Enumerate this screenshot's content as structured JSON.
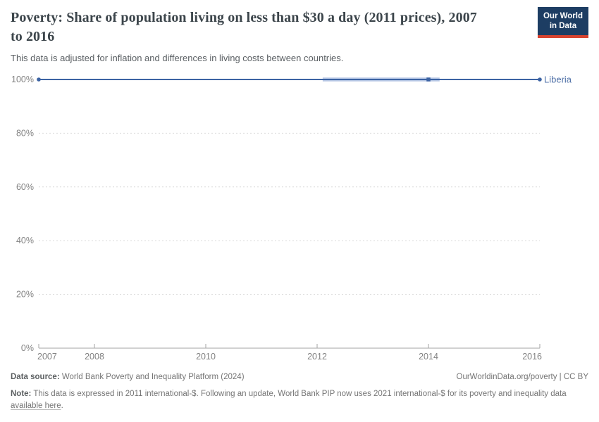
{
  "header": {
    "logo": {
      "line1": "Our World",
      "line2": "in Data",
      "bg_color": "#1d3d63",
      "stripe_color": "#d8432f"
    }
  },
  "chart_data": {
    "type": "line",
    "title": "Poverty: Share of population living on less than $30 a day (2011 prices), 2007 to 2016",
    "subtitle": "This data is adjusted for inflation and differences in living costs between countries.",
    "x": [
      2007,
      2008,
      2009,
      2010,
      2011,
      2012,
      2013,
      2014,
      2015,
      2016
    ],
    "xlim": [
      2007,
      2016
    ],
    "ylim": [
      0,
      100
    ],
    "yticks": [
      0,
      20,
      40,
      60,
      80,
      100
    ],
    "ytick_suffix": "%",
    "xticks": [
      2007,
      2008,
      2010,
      2012,
      2014,
      2016
    ],
    "grid": "horizontal-dashed",
    "legend_position": "right-of-line-end",
    "series": [
      {
        "name": "Liberia",
        "values": [
          100,
          100,
          100,
          100,
          100,
          100,
          100,
          100,
          100,
          100
        ],
        "color": "#3c63a3",
        "light_color": "#b9c9e6",
        "label_color": "#5172a8",
        "markers": [
          {
            "year": 2007,
            "shape": "circle"
          },
          {
            "year": 2014,
            "shape": "square"
          },
          {
            "year": 2016,
            "shape": "circle"
          }
        ],
        "interpolated_span": [
          2012.1,
          2014.2
        ]
      }
    ],
    "colors": {
      "grid": "#d9d9d9",
      "axis": "#a3a3a3",
      "tick_label": "#828282"
    }
  },
  "footer": {
    "datasource_label": "Data source:",
    "datasource_value": " World Bank Poverty and Inequality Platform (2024)",
    "attribution": "OurWorldinData.org/poverty | CC BY",
    "note_label": "Note:",
    "note_text": " This data is expressed in 2011 international-$. Following an update, World Bank PIP now uses 2021 international-$ for its poverty and inequality data ",
    "note_link": "available here",
    "note_suffix": "."
  }
}
